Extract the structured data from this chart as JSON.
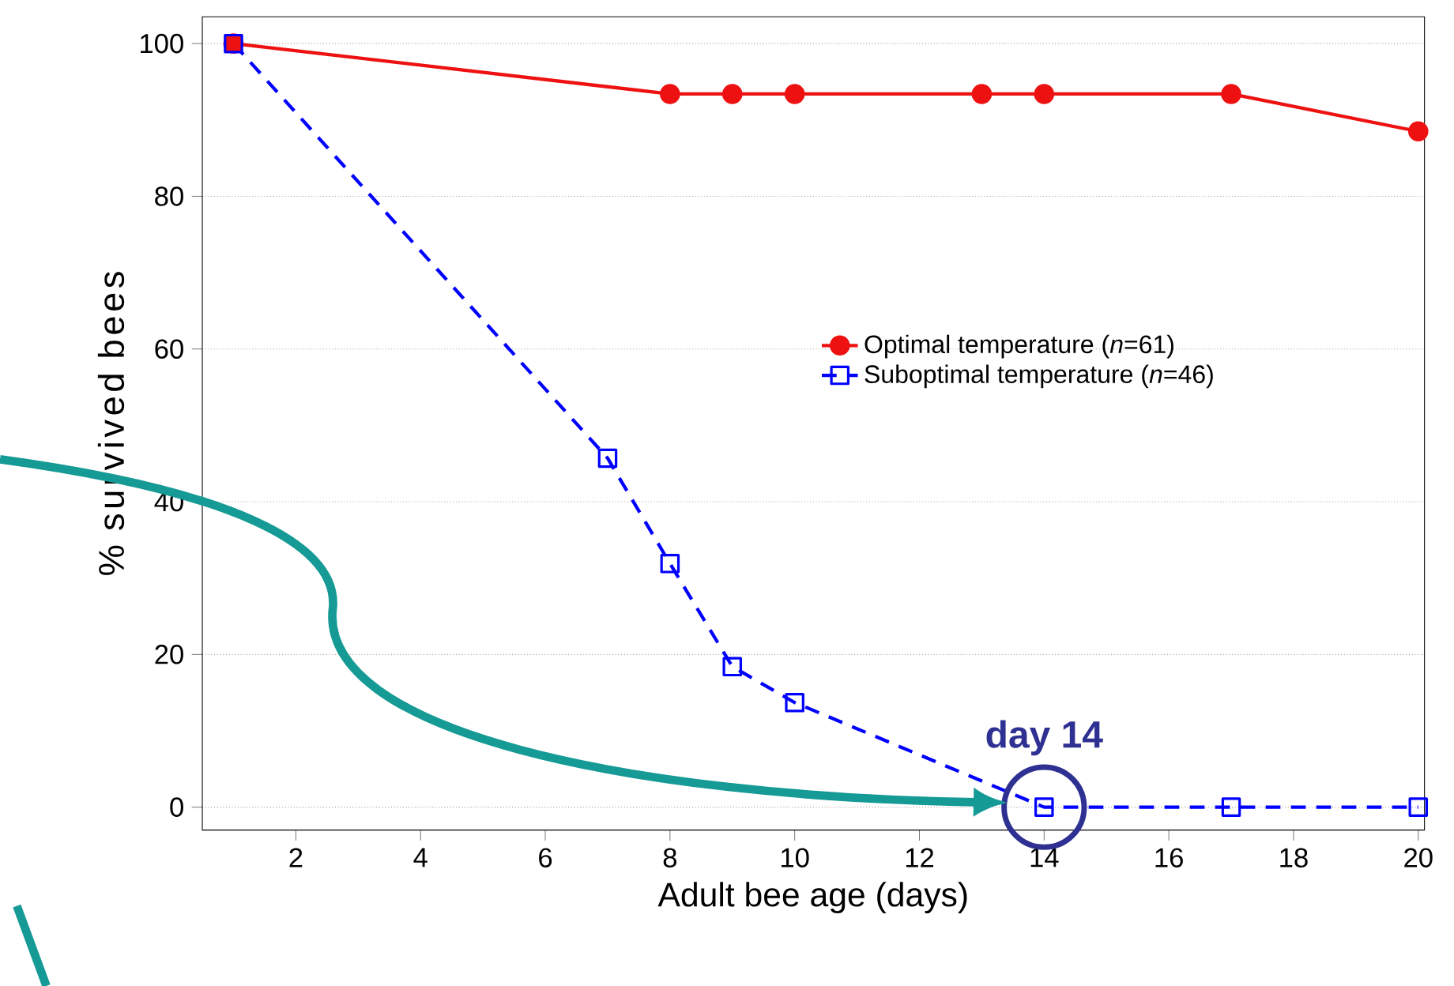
{
  "chart_data": {
    "type": "line",
    "xlabel": "Adult bee age (days)",
    "ylabel": "% survived bees",
    "xlim": [
      0.5,
      20.1
    ],
    "xticks": [
      2,
      4,
      6,
      8,
      10,
      12,
      14,
      16,
      18,
      20
    ],
    "ylim": [
      -3,
      103.5
    ],
    "yticks": [
      0,
      20,
      40,
      60,
      80,
      100
    ],
    "grid": "y",
    "legend": "right",
    "series": [
      {
        "name": "Optimal temperature (*n*=61)",
        "color": "#ee1111",
        "marker": "circle",
        "line_style": "solid",
        "x": [
          1,
          8,
          9,
          10,
          13,
          14,
          17,
          20
        ],
        "values": [
          100,
          93.4,
          93.4,
          93.4,
          93.4,
          93.4,
          93.4,
          88.5
        ]
      },
      {
        "name": "Suboptimal temperature (*n*=46)",
        "color": "#0000ff",
        "marker": "square",
        "line_style": "dashed",
        "x": [
          1,
          7,
          8,
          9,
          10,
          14,
          17,
          20
        ],
        "values": [
          100,
          45.7,
          31.9,
          18.4,
          13.7,
          0,
          0,
          0
        ]
      }
    ],
    "annotations": [
      {
        "text": "day 14",
        "x": 14,
        "y": 0
      }
    ]
  }
}
